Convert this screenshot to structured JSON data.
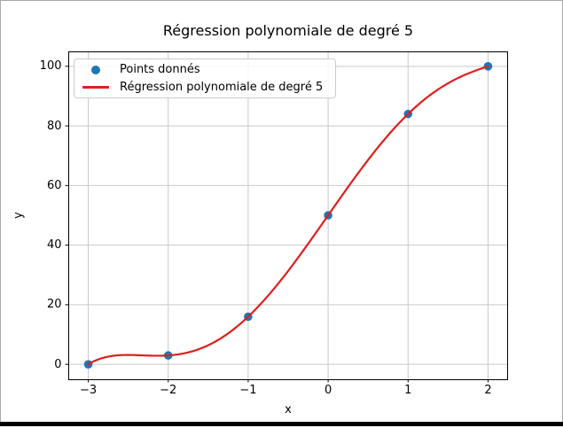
{
  "figure": {
    "background": "#ffffff",
    "frame_border_color": "#a9a9a9",
    "bottom_bar_color": "#000000"
  },
  "chart_data": {
    "type": "scatter+line",
    "title": "Régression polynomiale de degré 5",
    "xlabel": "x",
    "ylabel": "y",
    "xlim": [
      -3.25,
      2.25
    ],
    "ylim": [
      -5,
      105
    ],
    "grid": true,
    "grid_color": "#c9c9c9",
    "axes_color": "#000000",
    "xticks": {
      "values": [
        -3,
        -2,
        -1,
        0,
        1,
        2
      ],
      "labels": [
        "−3",
        "−2",
        "−1",
        "0",
        "1",
        "2"
      ]
    },
    "yticks": {
      "values": [
        0,
        20,
        40,
        60,
        80,
        100
      ],
      "labels": [
        "0",
        "20",
        "40",
        "60",
        "80",
        "100"
      ]
    },
    "points": {
      "name": "Points donnés",
      "color": "#1f77b4",
      "x": [
        -3,
        -2,
        -1,
        0,
        1,
        2
      ],
      "y": [
        0,
        3,
        16,
        50,
        84,
        100
      ]
    },
    "fit_line": {
      "name": "Régression polynomiale de degré 5",
      "color": "#e11d1d",
      "degree": 5,
      "x_range": [
        -3,
        2
      ]
    },
    "legend": {
      "position": "upper left",
      "entries": [
        "Points donnés",
        "Régression polynomiale de degré 5"
      ]
    }
  }
}
